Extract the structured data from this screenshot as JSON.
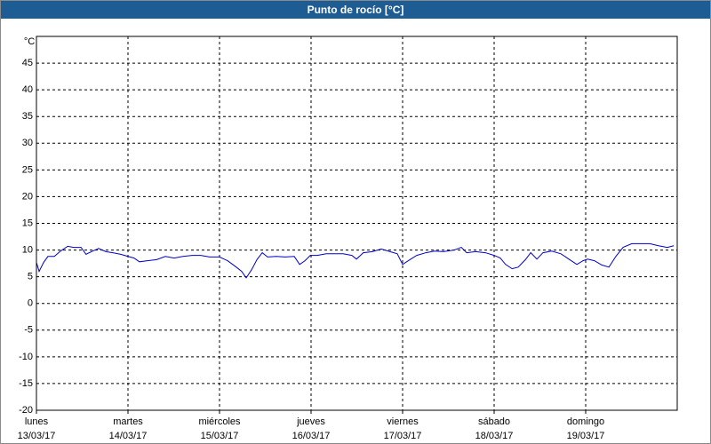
{
  "chart_data": {
    "type": "line",
    "title": "Punto de rocío [°C]",
    "y_unit_label": "°C",
    "xlim": [
      0,
      168
    ],
    "ylim": [
      -20,
      50
    ],
    "xticks": [
      {
        "value": 0,
        "label": "lunes"
      },
      {
        "value": 24,
        "label": "martes"
      },
      {
        "value": 48,
        "label": "miércoles"
      },
      {
        "value": 72,
        "label": "jueves"
      },
      {
        "value": 96,
        "label": "viernes"
      },
      {
        "value": 120,
        "label": "sábado"
      },
      {
        "value": 144,
        "label": "domingo"
      }
    ],
    "xtick_dates": [
      "13/03/17",
      "14/03/17",
      "15/03/17",
      "16/03/17",
      "17/03/17",
      "18/03/17",
      "19/03/17"
    ],
    "yticks": [
      -20,
      -15,
      -10,
      -5,
      0,
      5,
      10,
      15,
      20,
      25,
      30,
      35,
      40,
      45
    ],
    "grid": true,
    "series": [
      {
        "name": "Punto de rocío",
        "color": "#0000c8",
        "x": [
          0,
          0.7,
          1.9,
          3,
          4.7,
          6.3,
          8.2,
          9.8,
          11.7,
          13,
          14.7,
          16.3,
          18.2,
          20,
          22.1,
          24,
          25.6,
          27,
          29.1,
          31.5,
          33.8,
          36.1,
          38.4,
          40.8,
          43.1,
          45.4,
          48,
          50.1,
          52.4,
          53.8,
          55,
          56.4,
          57.8,
          59.2,
          60.6,
          62.9,
          65.2,
          67.6,
          69,
          70.4,
          71.8,
          73.6,
          76,
          78.1,
          80.4,
          82.7,
          83.9,
          85.7,
          88.1,
          90.4,
          92.7,
          94.6,
          96,
          97.9,
          99.7,
          102.1,
          104.4,
          106.7,
          109.5,
          111.4,
          112.8,
          115.1,
          117.7,
          120,
          121.6,
          123,
          124.7,
          126.3,
          128.2,
          129.6,
          131.2,
          132.8,
          135.1,
          137.5,
          139.8,
          141.7,
          143.3,
          144.5,
          146.3,
          148.2,
          150.1,
          151.9,
          153.8,
          156.1,
          158.4,
          160.8,
          163.1,
          165.4,
          167.1
        ],
        "values": [
          7.7,
          6,
          7.7,
          8.8,
          8.8,
          9.8,
          10.7,
          10.5,
          10.5,
          9.2,
          9.8,
          10.3,
          9.7,
          9.5,
          9.2,
          8.8,
          8.5,
          7.8,
          8,
          8.2,
          8.8,
          8.5,
          8.8,
          9,
          9,
          8.7,
          8.7,
          8,
          6.8,
          6,
          4.8,
          6.3,
          8.2,
          9.5,
          8.7,
          8.8,
          8.7,
          8.8,
          7.3,
          8,
          9,
          9,
          9.3,
          9.3,
          9.3,
          9,
          8.3,
          9.5,
          9.7,
          10.2,
          9.7,
          9.3,
          7.3,
          8.2,
          9,
          9.5,
          9.8,
          9.7,
          10,
          10.5,
          9.5,
          9.7,
          9.5,
          9,
          8.5,
          7.3,
          6.5,
          6.8,
          8.2,
          9.5,
          8.3,
          9.5,
          9.8,
          9.3,
          8.2,
          7.3,
          8,
          8.3,
          8,
          7.2,
          6.8,
          8.8,
          10.5,
          11.2,
          11.2,
          11.2,
          10.8,
          10.5,
          10.8
        ]
      }
    ]
  }
}
